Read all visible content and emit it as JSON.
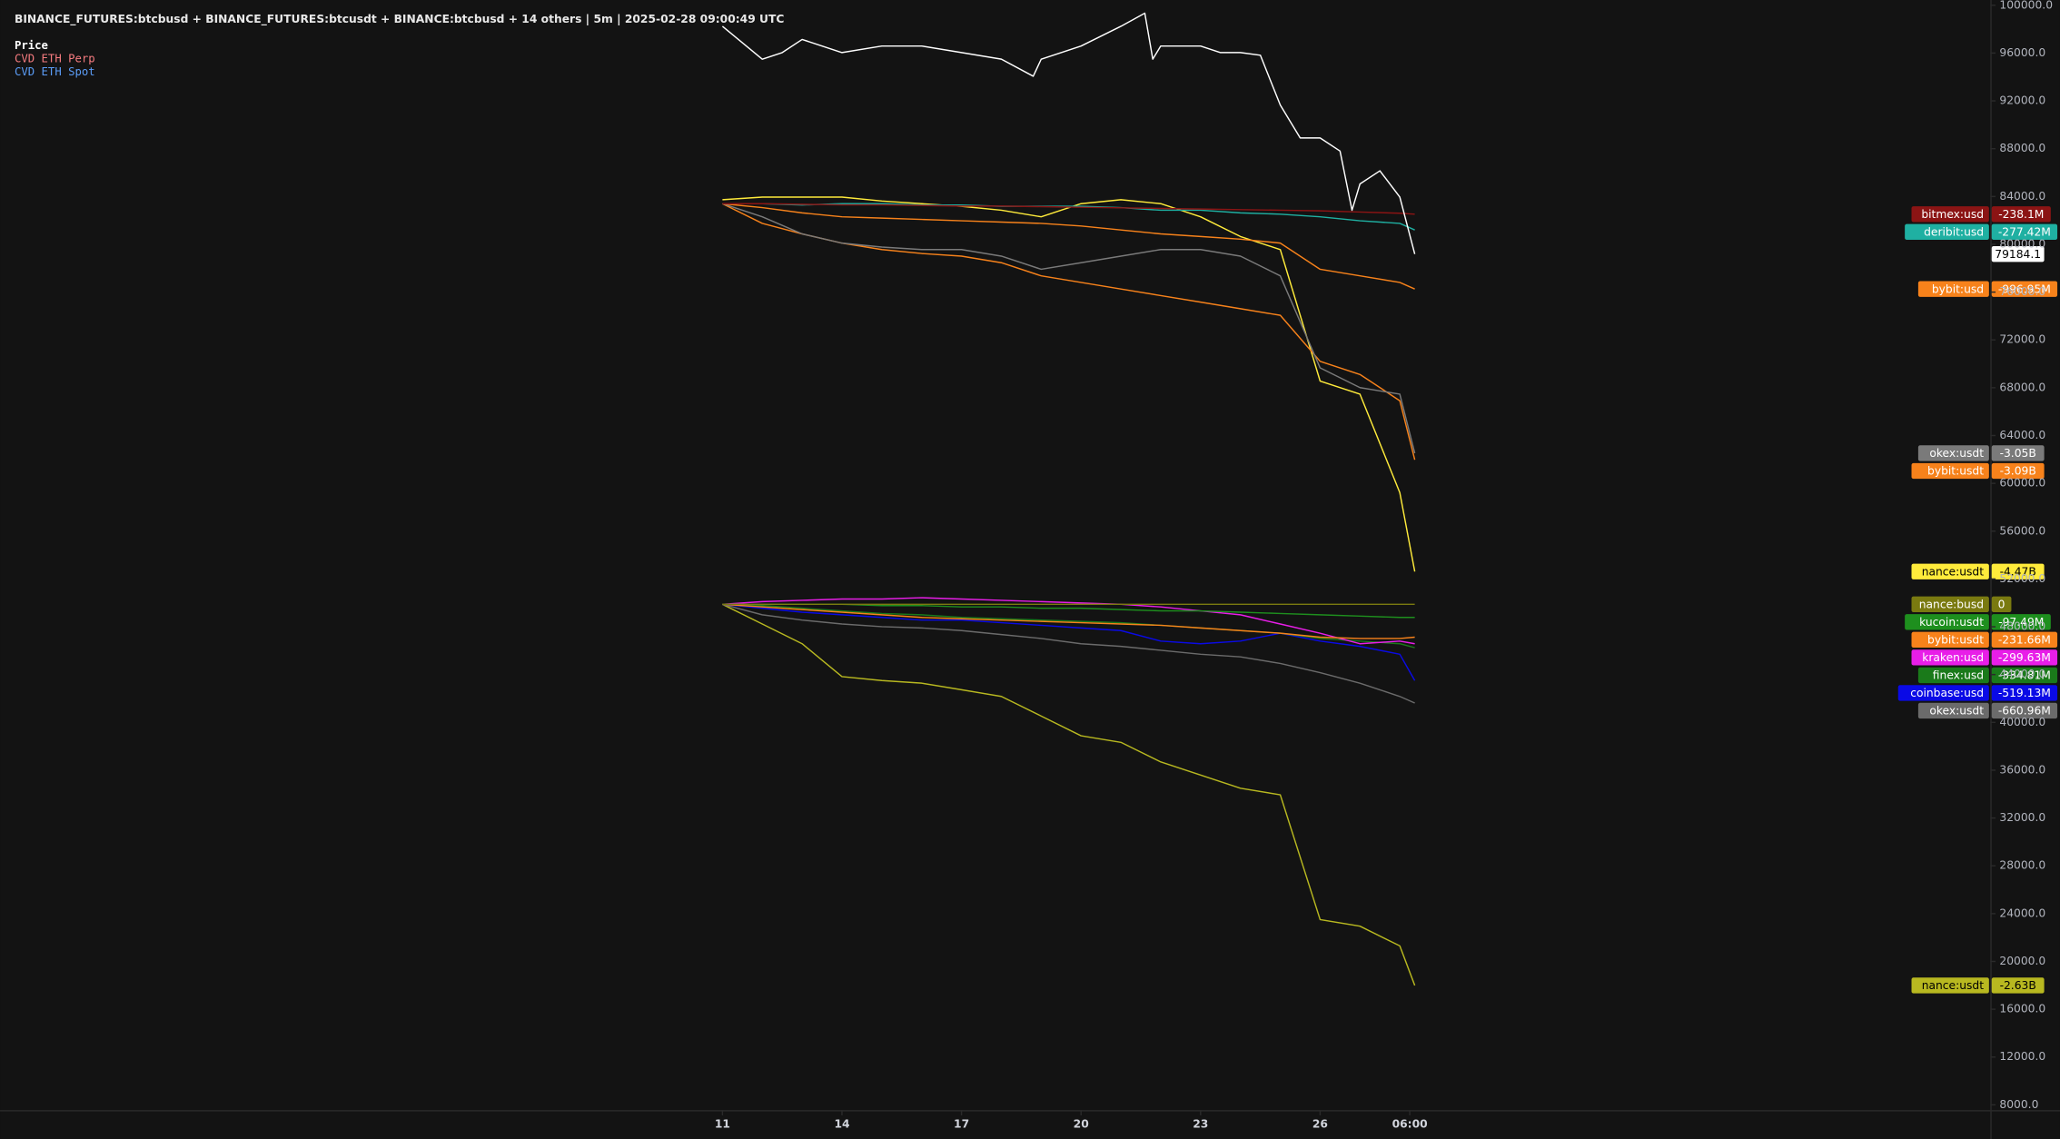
{
  "chart_data": {
    "type": "line",
    "title": "BINANCE_FUTURES:btcbusd + BINANCE_FUTURES:btcusdt + BINANCE:btcbusd + 14 others | 5m | 2025-02-28 09:00:49 UTC",
    "indicators": [
      {
        "name": "Price",
        "color": "#ffffff"
      },
      {
        "name": "CVD ETH Perp",
        "color": "#f77c80"
      },
      {
        "name": "CVD ETH Spot",
        "color": "#5b9cf6"
      }
    ],
    "grid": false,
    "xlim": [
      -7.13,
      42.82
    ],
    "ylim": [
      7560,
      100440
    ],
    "xticks": [
      11,
      14,
      17,
      20,
      23,
      26,
      {
        "value": 28.25,
        "label": "06:00"
      }
    ],
    "yticks": [
      {
        "value": 100000,
        "label": "100000.0"
      },
      {
        "value": 96000,
        "label": "96000.0"
      },
      {
        "value": 92000,
        "label": "92000.0"
      },
      {
        "value": 88000,
        "label": "88000.0"
      },
      {
        "value": 84000,
        "label": "84000.0"
      },
      {
        "value": 80000,
        "label": "80000.0"
      },
      {
        "value": 76000,
        "label": "76000.0"
      },
      {
        "value": 72000,
        "label": "72000.0"
      },
      {
        "value": 68000,
        "label": "68000.0"
      },
      {
        "value": 64000,
        "label": "64000.0"
      },
      {
        "value": 60000,
        "label": "60000.0"
      },
      {
        "value": 56000,
        "label": "56000.0"
      },
      {
        "value": 52000,
        "label": "52000.0"
      },
      {
        "value": 48000,
        "label": "48000.0"
      },
      {
        "value": 44000,
        "label": "44000.0"
      },
      {
        "value": 40000,
        "label": "40000.0"
      },
      {
        "value": 36000,
        "label": "36000.0"
      },
      {
        "value": 32000,
        "label": "32000.0"
      },
      {
        "value": 28000,
        "label": "28000.0"
      },
      {
        "value": 24000,
        "label": "24000.0"
      },
      {
        "value": 20000,
        "label": "20000.0"
      },
      {
        "value": 16000,
        "label": "16000.0"
      },
      {
        "value": 12000,
        "label": "12000.0"
      },
      {
        "value": 8000,
        "label": "8000.0"
      }
    ],
    "x": [
      11,
      12,
      13,
      14,
      15,
      16,
      17,
      18,
      19,
      20,
      21,
      22,
      23,
      24,
      25,
      26,
      27,
      28,
      28.375
    ],
    "series": [
      {
        "color": "#ffffff",
        "x": [
          11,
          12,
          12.5,
          13,
          14,
          15,
          16,
          17,
          18,
          18.8,
          19,
          20,
          21,
          21.6,
          21.8,
          22,
          23,
          23.5,
          24,
          24.5,
          25,
          25.5,
          26,
          26.5,
          26.8,
          27,
          27.5,
          28,
          28.375
        ],
        "values": [
          98240,
          95490,
          96040,
          97140,
          96040,
          96590,
          96590,
          96040,
          95490,
          94060,
          95490,
          96590,
          98240,
          99340,
          95490,
          96590,
          96590,
          96040,
          96040,
          95820,
          91650,
          88900,
          88900,
          87800,
          82850,
          85050,
          86150,
          83950,
          79184.1
        ]
      },
      {
        "name": "bitmex:usd",
        "color": "#8b1414",
        "last_label": "-238.1M",
        "values": [
          83400,
          83400,
          83350,
          83300,
          83300,
          83250,
          83200,
          83200,
          83150,
          83100,
          83050,
          83000,
          82950,
          82900,
          82850,
          82800,
          82700,
          82600,
          82520
        ]
      },
      {
        "name": "deribit:usd",
        "color": "#1fb0a2",
        "last_label": "-277.42M",
        "values": [
          83400,
          83400,
          83290,
          83400,
          83400,
          83290,
          83290,
          83180,
          83180,
          83180,
          83070,
          82850,
          82850,
          82630,
          82520,
          82300,
          81970,
          81750,
          81200
        ]
      },
      {
        "name": "bybit:usd",
        "color": "#f7821b",
        "last_label": "-996.95M",
        "values": [
          83400,
          83070,
          82630,
          82300,
          82190,
          82080,
          81970,
          81860,
          81750,
          81530,
          81200,
          80870,
          80650,
          80430,
          80100,
          77910,
          77360,
          76810,
          76260
        ]
      },
      {
        "name": "okex:usdt",
        "color": "#7a7a7a",
        "last_label": "-3.05B",
        "values": [
          83400,
          82300,
          80870,
          80100,
          79770,
          79560,
          79560,
          79010,
          77910,
          78460,
          79010,
          79560,
          79560,
          79010,
          77360,
          69660,
          68010,
          67460,
          62520
        ]
      },
      {
        "name": "bybit:usdt",
        "color": "#f7821b",
        "last_label": "-3.09B",
        "values": [
          83400,
          81750,
          80870,
          80100,
          79560,
          79230,
          79010,
          78460,
          77360,
          76810,
          76260,
          75710,
          75160,
          74610,
          74060,
          70210,
          69110,
          66910,
          61970
        ]
      },
      {
        "name": "nance:usdt",
        "color": "#ffeb3b",
        "last_label": "-4.47B",
        "values": [
          83730,
          83950,
          83950,
          83950,
          83620,
          83400,
          83180,
          82850,
          82300,
          83400,
          83730,
          83400,
          82300,
          80650,
          79560,
          68560,
          67460,
          59220,
          52620
        ]
      },
      {
        "name": "nance:busd",
        "color": "#7a7a10",
        "last_label": "0",
        "values": [
          49880,
          49880,
          49880,
          49880,
          49880,
          49880,
          49880,
          49880,
          49880,
          49880,
          49880,
          49880,
          49880,
          49880,
          49880,
          49880,
          49880,
          49880,
          49880
        ]
      },
      {
        "name": "kucoin:usdt",
        "color": "#1e8f1e",
        "last_label": "-97.49M",
        "values": [
          49880,
          49880,
          49880,
          49880,
          49770,
          49770,
          49660,
          49660,
          49550,
          49550,
          49440,
          49330,
          49330,
          49220,
          49110,
          49000,
          48890,
          48780,
          48780
        ]
      },
      {
        "name": "bybit:usdt",
        "color": "#f7821b",
        "last_label": "-231.66M",
        "values": [
          49880,
          49660,
          49440,
          49220,
          49000,
          48780,
          48670,
          48560,
          48450,
          48340,
          48230,
          48120,
          47900,
          47680,
          47460,
          47130,
          47020,
          47020,
          47130
        ]
      },
      {
        "name": "kraken:usd",
        "color": "#e81ee8",
        "last_label": "-299.63M",
        "values": [
          49880,
          50100,
          50210,
          50320,
          50320,
          50430,
          50320,
          50210,
          50100,
          49990,
          49880,
          49660,
          49330,
          49000,
          48230,
          47460,
          46580,
          46800,
          46580
        ]
      },
      {
        "name": "finex:usd",
        "color": "#1a7a1a",
        "last_label": "-334.81M",
        "values": [
          49880,
          49770,
          49550,
          49330,
          49110,
          49000,
          48780,
          48670,
          48560,
          48450,
          48340,
          48120,
          47900,
          47680,
          47460,
          47020,
          46800,
          46580,
          46250
        ]
      },
      {
        "name": "coinbase:usd",
        "color": "#0a0ae6",
        "last_label": "-519.13M",
        "values": [
          49880,
          49550,
          49220,
          49000,
          48780,
          48560,
          48560,
          48340,
          48120,
          47900,
          47680,
          46800,
          46580,
          46800,
          47460,
          46800,
          46360,
          45700,
          43500
        ]
      },
      {
        "name": "okex:usdt",
        "color": "#6b6b6b",
        "last_label": "-660.96M",
        "values": [
          49880,
          49000,
          48560,
          48230,
          48010,
          47900,
          47680,
          47350,
          47020,
          46580,
          46360,
          46030,
          45700,
          45480,
          44930,
          44160,
          43280,
          42170,
          41620
        ]
      },
      {
        "name": "nance:usdt",
        "color": "#b8b820",
        "last_label": "-2.63B",
        "values": [
          49880,
          48230,
          46580,
          43830,
          43500,
          43280,
          42730,
          42170,
          40530,
          38880,
          38330,
          36690,
          35590,
          34490,
          33940,
          23500,
          22950,
          21300,
          17990
        ]
      }
    ]
  }
}
